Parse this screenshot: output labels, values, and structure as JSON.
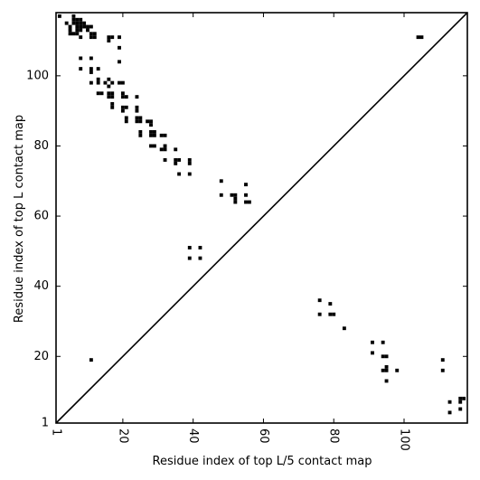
{
  "chart_data": {
    "type": "heatmap",
    "title": "",
    "xlabel": "Residue index of top L/5 contact map",
    "ylabel": "Residue index of top L contact map",
    "xlim": [
      1,
      118
    ],
    "ylim": [
      1,
      118
    ],
    "x_ticks": [
      {
        "value": 1,
        "label": "1"
      },
      {
        "value": 20,
        "label": "20"
      },
      {
        "value": 40,
        "label": "40"
      },
      {
        "value": 60,
        "label": "60"
      },
      {
        "value": 80,
        "label": "80"
      },
      {
        "value": 100,
        "label": "100"
      }
    ],
    "y_ticks": [
      {
        "value": 1,
        "label": "1"
      },
      {
        "value": 20,
        "label": "20"
      },
      {
        "value": 40,
        "label": "40"
      },
      {
        "value": 60,
        "label": "60"
      },
      {
        "value": 80,
        "label": "80"
      },
      {
        "value": 100,
        "label": "100"
      }
    ],
    "diagonal": true,
    "marker_color": "#000000",
    "upper_contacts": [
      [
        2,
        117
      ],
      [
        4,
        115
      ],
      [
        5,
        114
      ],
      [
        5,
        113
      ],
      [
        5,
        112
      ],
      [
        6,
        117
      ],
      [
        6,
        116
      ],
      [
        6,
        115
      ],
      [
        6,
        112
      ],
      [
        7,
        116
      ],
      [
        7,
        115
      ],
      [
        7,
        114
      ],
      [
        7,
        113
      ],
      [
        7,
        112
      ],
      [
        8,
        116
      ],
      [
        8,
        115
      ],
      [
        8,
        114
      ],
      [
        8,
        113
      ],
      [
        8,
        111
      ],
      [
        9,
        115
      ],
      [
        9,
        114
      ],
      [
        10,
        114
      ],
      [
        10,
        113
      ],
      [
        11,
        114
      ],
      [
        11,
        112
      ],
      [
        11,
        111
      ],
      [
        12,
        112
      ],
      [
        12,
        111
      ],
      [
        16,
        111
      ],
      [
        16,
        110
      ],
      [
        17,
        111
      ],
      [
        19,
        111
      ],
      [
        19,
        108
      ],
      [
        19,
        104
      ],
      [
        8,
        105
      ],
      [
        8,
        102
      ],
      [
        11,
        105
      ],
      [
        11,
        102
      ],
      [
        11,
        101
      ],
      [
        13,
        102
      ],
      [
        11,
        98
      ],
      [
        13,
        98
      ],
      [
        13,
        99
      ],
      [
        15,
        98
      ],
      [
        17,
        98
      ],
      [
        13,
        95
      ],
      [
        14,
        95
      ],
      [
        16,
        95
      ],
      [
        17,
        95
      ],
      [
        16,
        94
      ],
      [
        17,
        94
      ],
      [
        16,
        99
      ],
      [
        16,
        97
      ],
      [
        17,
        92
      ],
      [
        17,
        91
      ],
      [
        19,
        98
      ],
      [
        20,
        98
      ],
      [
        20,
        95
      ],
      [
        20,
        94
      ],
      [
        21,
        94
      ],
      [
        20,
        91
      ],
      [
        20,
        90
      ],
      [
        21,
        91
      ],
      [
        21,
        88
      ],
      [
        21,
        87
      ],
      [
        24,
        94
      ],
      [
        24,
        91
      ],
      [
        24,
        90
      ],
      [
        24,
        88
      ],
      [
        25,
        88
      ],
      [
        24,
        87
      ],
      [
        25,
        87
      ],
      [
        25,
        84
      ],
      [
        25,
        83
      ],
      [
        27,
        87
      ],
      [
        28,
        87
      ],
      [
        28,
        86
      ],
      [
        28,
        84
      ],
      [
        29,
        84
      ],
      [
        28,
        83
      ],
      [
        29,
        83
      ],
      [
        28,
        80
      ],
      [
        29,
        80
      ],
      [
        31,
        83
      ],
      [
        32,
        83
      ],
      [
        31,
        79
      ],
      [
        32,
        80
      ],
      [
        32,
        79
      ],
      [
        32,
        76
      ],
      [
        35,
        79
      ],
      [
        35,
        76
      ],
      [
        36,
        76
      ],
      [
        35,
        75
      ],
      [
        36,
        72
      ],
      [
        39,
        76
      ],
      [
        39,
        75
      ],
      [
        39,
        72
      ],
      [
        48,
        70
      ],
      [
        48,
        66
      ],
      [
        51,
        66
      ],
      [
        52,
        66
      ],
      [
        52,
        65
      ],
      [
        52,
        64
      ],
      [
        55,
        69
      ],
      [
        55,
        66
      ],
      [
        55,
        64
      ],
      [
        56,
        64
      ],
      [
        39,
        51
      ],
      [
        39,
        48
      ],
      [
        42,
        51
      ],
      [
        42,
        48
      ],
      [
        104,
        111
      ],
      [
        105,
        111
      ]
    ],
    "lower_contacts": [
      [
        11,
        19
      ],
      [
        76,
        36
      ],
      [
        79,
        35
      ],
      [
        76,
        32
      ],
      [
        79,
        32
      ],
      [
        80,
        32
      ],
      [
        83,
        28
      ],
      [
        91,
        24
      ],
      [
        94,
        24
      ],
      [
        91,
        21
      ],
      [
        94,
        20
      ],
      [
        95,
        20
      ],
      [
        94,
        16
      ],
      [
        95,
        16
      ],
      [
        95,
        17
      ],
      [
        98,
        16
      ],
      [
        95,
        13
      ],
      [
        111,
        19
      ],
      [
        111,
        16
      ],
      [
        113,
        7
      ],
      [
        113,
        4
      ],
      [
        116,
        8
      ],
      [
        116,
        7
      ],
      [
        117,
        8
      ],
      [
        116,
        5
      ]
    ]
  }
}
